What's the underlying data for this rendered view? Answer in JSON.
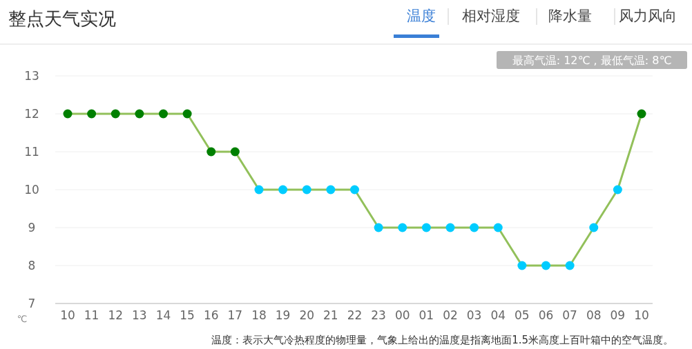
{
  "chart_data": {
    "type": "line",
    "title": "整点天气实况",
    "ylabel": "℃",
    "annotations": [
      "温度",
      "相对湿度",
      "降水量",
      "风力风向",
      "最高气温: 12℃ , 最低气温: 8℃",
      "温度：表示大气冷热程度的物理量，气象上给出的温度是指离地面1.5米高度上百叶箱中的空气温度。"
    ],
    "categories": [
      "10",
      "11",
      "12",
      "13",
      "14",
      "15",
      "16",
      "17",
      "18",
      "19",
      "20",
      "21",
      "22",
      "23",
      "00",
      "01",
      "02",
      "03",
      "04",
      "05",
      "06",
      "07",
      "08",
      "09",
      "10"
    ],
    "series": [
      {
        "color": "#92c05a",
        "values": [
          12,
          12,
          12,
          12,
          12,
          12,
          11,
          11,
          10,
          10,
          10,
          10,
          10,
          9,
          9,
          9,
          9,
          9,
          9,
          8,
          8,
          8,
          9,
          10,
          12
        ],
        "colors": [
          "#008000",
          "#008000",
          "#008000",
          "#008000",
          "#008000",
          "#008000",
          "#008000",
          "#008000",
          "#00ccff",
          "#00ccff",
          "#00ccff",
          "#00ccff",
          "#00ccff",
          "#00ccff",
          "#00ccff",
          "#00ccff",
          "#00ccff",
          "#00ccff",
          "#00ccff",
          "#00ccff",
          "#00ccff",
          "#00ccff",
          "#00ccff",
          "#00ccff",
          "#008000"
        ]
      }
    ],
    "ylim": [
      7,
      13
    ],
    "yticks": [
      7,
      8,
      9,
      10,
      11,
      12,
      13
    ],
    "grid": "y",
    "marker": "circle",
    "line_style": "solid"
  }
}
